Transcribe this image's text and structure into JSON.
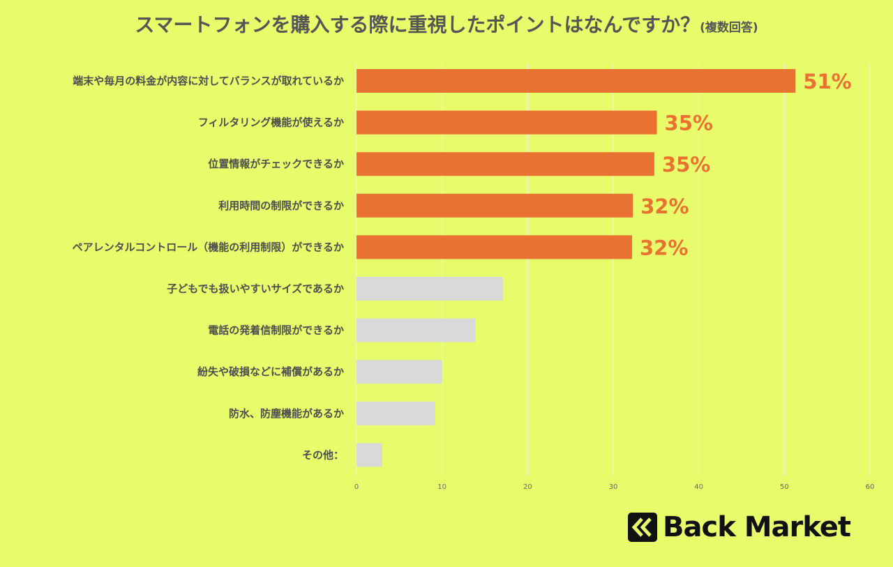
{
  "title": "スマートフォンを購入する際に重視したポイントはなんですか？",
  "subtitle": "(複数回答)",
  "brand": {
    "name": "Back Market",
    "icon": "back-market-chevron-logo-icon"
  },
  "colors": {
    "background": "#e7fb6b",
    "highlight": "#e97131",
    "muted": "#d9d9d9",
    "grid": "#f2f2f2"
  },
  "chart_data": {
    "type": "bar",
    "orientation": "horizontal",
    "categories": [
      "端末や毎月の料金が内容に対してバランスが取れているか",
      "フィルタリング機能が使えるか",
      "位置情報がチェックできるか",
      "利用時間の制限ができるか",
      "ペアレンタルコントロール（機能の利用制限）ができるか",
      "子どもでも扱いやすいサイズであるか",
      "電話の発着信制限ができるか",
      "紛失や破損などに補償があるか",
      "防水、防塵機能があるか",
      "その他："
    ],
    "values": [
      51.3,
      35.1,
      34.8,
      32.3,
      32.2,
      17.1,
      13.9,
      10.0,
      9.2,
      3.0
    ],
    "highlighted": [
      true,
      true,
      true,
      true,
      true,
      false,
      false,
      false,
      false,
      false
    ],
    "data_labels": [
      "51%",
      "35%",
      "35%",
      "32%",
      "32%",
      "",
      "",
      "",
      "",
      ""
    ],
    "xlim": [
      0,
      60
    ],
    "xticks": [
      "0",
      "10",
      "20",
      "30",
      "40",
      "50",
      "60"
    ],
    "grid": "vertical",
    "xlabel": "",
    "ylabel": ""
  }
}
